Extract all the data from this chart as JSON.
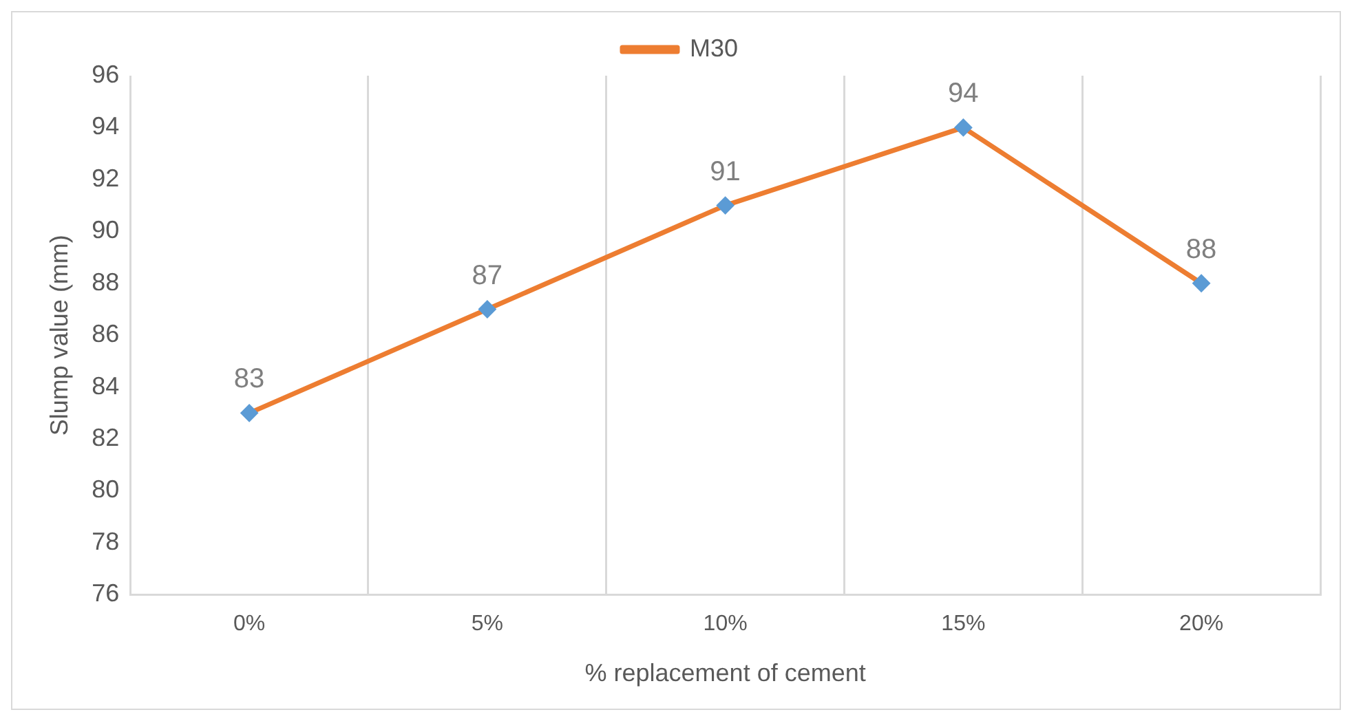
{
  "chart_data": {
    "type": "line",
    "xlabel": "% replacement of cement",
    "ylabel": "Slump value (mm)",
    "categories": [
      "0%",
      "5%",
      "10%",
      "15%",
      "20%"
    ],
    "series": [
      {
        "name": "M30",
        "color": "#ed7d31",
        "values": [
          83,
          87,
          91,
          94,
          88
        ]
      }
    ],
    "ylim": [
      76,
      96
    ],
    "yticks": [
      76,
      78,
      80,
      82,
      84,
      86,
      88,
      90,
      92,
      94,
      96
    ],
    "grid": "x",
    "legend": "top",
    "marker": "diamond",
    "line_style": "solid",
    "data_labels": true
  }
}
